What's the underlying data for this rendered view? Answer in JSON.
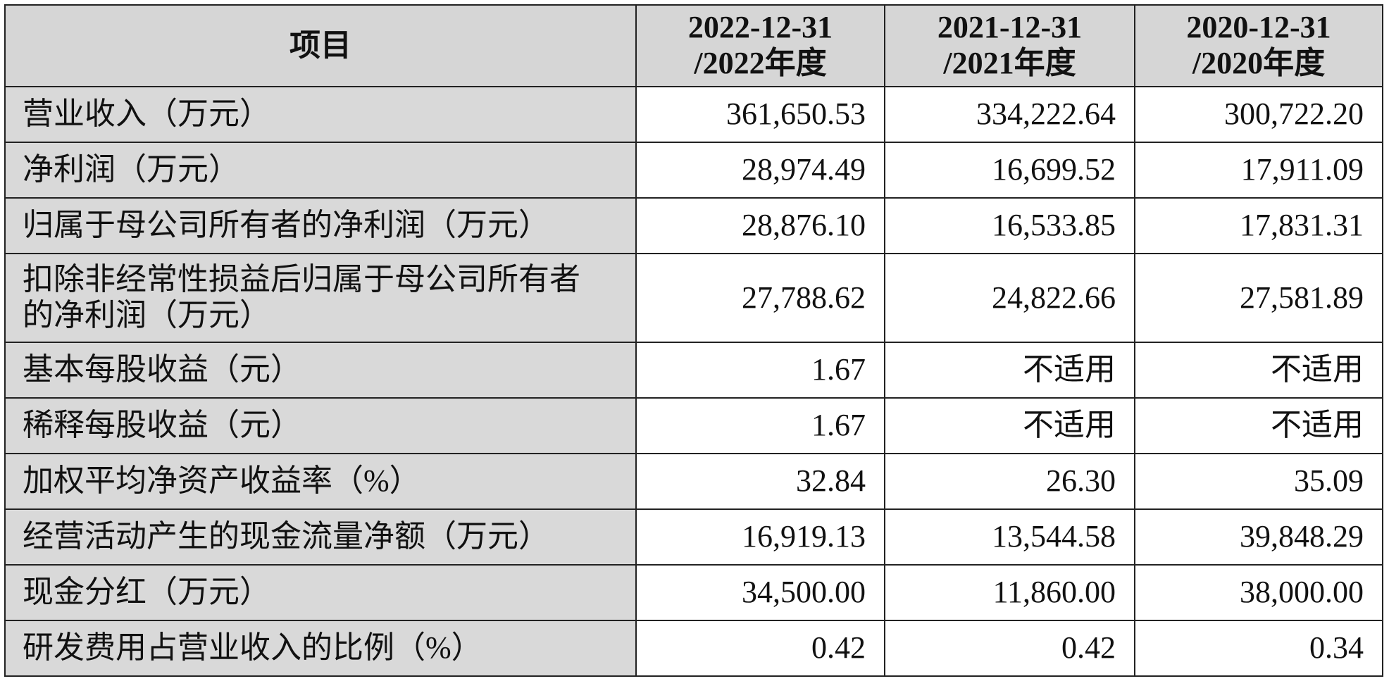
{
  "table": {
    "header": [
      "项目",
      "2022-12-31\n/2022年度",
      "2021-12-31\n/2021年度",
      "2020-12-31\n/2020年度"
    ],
    "rows": [
      [
        "营业收入（万元）",
        "361,650.53",
        "334,222.64",
        "300,722.20"
      ],
      [
        "净利润（万元）",
        "28,974.49",
        "16,699.52",
        "17,911.09"
      ],
      [
        "归属于母公司所有者的净利润（万元）",
        "28,876.10",
        "16,533.85",
        "17,831.31"
      ],
      [
        "扣除非经常性损益后归属于母公司所有者的净利润（万元）",
        "27,788.62",
        "24,822.66",
        "27,581.89"
      ],
      [
        "基本每股收益（元）",
        "1.67",
        "不适用",
        "不适用"
      ],
      [
        "稀释每股收益（元）",
        "1.67",
        "不适用",
        "不适用"
      ],
      [
        "加权平均净资产收益率（%）",
        "32.84",
        "26.30",
        "35.09"
      ],
      [
        "经营活动产生的现金流量净额（万元）",
        "16,919.13",
        "13,544.58",
        "39,848.29"
      ],
      [
        "现金分红（万元）",
        "34,500.00",
        "11,860.00",
        "38,000.00"
      ],
      [
        "研发费用占营业收入的比例（%）",
        "0.42",
        "0.42",
        "0.34"
      ]
    ]
  }
}
